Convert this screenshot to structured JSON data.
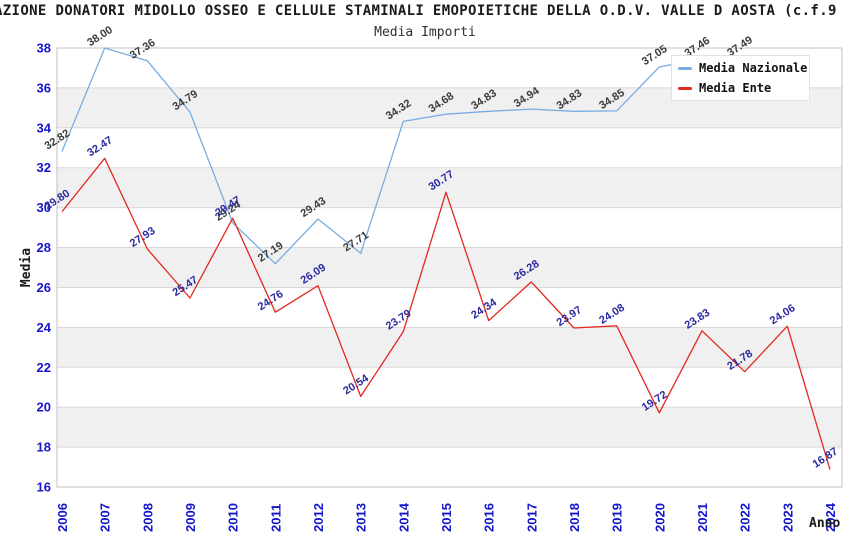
{
  "header": {
    "title": "AZIONE DONATORI MIDOLLO OSSEO E CELLULE STAMINALI EMOPOIETICHE DELLA O.D.V. VALLE D AOSTA (c.f.9",
    "subtitle": "Media Importi"
  },
  "legend": {
    "items": [
      {
        "label": "Media Nazionale",
        "color": "#78ade3"
      },
      {
        "label": "Media Ente",
        "color": "#e3281e"
      }
    ]
  },
  "chart_data": {
    "type": "line",
    "x": [
      2006,
      2007,
      2008,
      2009,
      2010,
      2011,
      2012,
      2013,
      2014,
      2015,
      2016,
      2017,
      2018,
      2019,
      2020,
      2021,
      2022,
      2023,
      2024
    ],
    "xlabel": "Anno",
    "ylabel": "Media",
    "ylim": [
      16,
      38
    ],
    "y_ticks": [
      16,
      18,
      20,
      22,
      24,
      26,
      28,
      30,
      32,
      34,
      36,
      38
    ],
    "grid": {
      "band_color": "#f0f0f0",
      "line_color": "#d8d8d8",
      "border_color": "#c0c0c0"
    },
    "tick_label_color": "#1515cc",
    "legend_position": "top-right",
    "series": [
      {
        "name": "Media Nazionale",
        "color": "#78ade3",
        "label_color": "#3c3c3c",
        "values": [
          32.82,
          38.0,
          37.36,
          34.79,
          29.24,
          27.19,
          29.43,
          27.71,
          34.32,
          34.68,
          34.83,
          34.94,
          34.83,
          34.85,
          37.05,
          37.46,
          37.49,
          null,
          null
        ]
      },
      {
        "name": "Media Ente",
        "color": "#e3281e",
        "label_color": "#2b2ba0",
        "values": [
          29.8,
          32.47,
          27.93,
          25.47,
          29.47,
          24.76,
          26.09,
          20.54,
          23.79,
          30.77,
          24.34,
          26.28,
          23.97,
          24.08,
          19.72,
          23.83,
          21.78,
          24.06,
          16.87
        ]
      }
    ]
  }
}
